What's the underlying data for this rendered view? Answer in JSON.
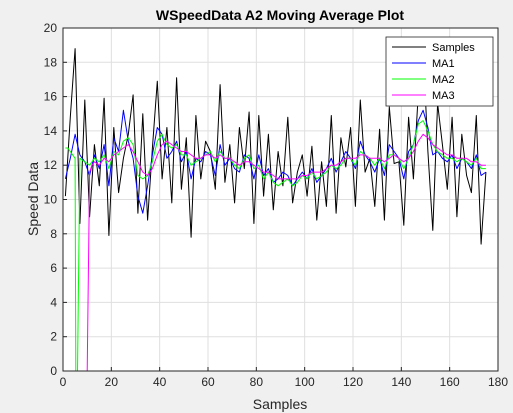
{
  "chart_data": {
    "type": "line",
    "title": "WSpeedData A2 Moving Average Plot",
    "xlabel": "Samples",
    "ylabel": "Speed Data",
    "xlim": [
      0,
      180
    ],
    "ylim": [
      0,
      20
    ],
    "xticks": [
      "0",
      "20",
      "40",
      "60",
      "80",
      "100",
      "120",
      "140",
      "160",
      "180"
    ],
    "yticks": [
      "0",
      "2",
      "4",
      "6",
      "8",
      "10",
      "12",
      "14",
      "16",
      "18",
      "20"
    ],
    "grid": true,
    "legend_position": "top-right",
    "series": [
      {
        "name": "Samples",
        "color": "#000000",
        "x": [
          1,
          3,
          5,
          7,
          9,
          11,
          13,
          15,
          17,
          19,
          21,
          23,
          25,
          27,
          29,
          31,
          33,
          35,
          37,
          39,
          41,
          43,
          45,
          47,
          49,
          51,
          53,
          55,
          57,
          59,
          61,
          63,
          65,
          67,
          69,
          71,
          73,
          75,
          77,
          79,
          81,
          83,
          85,
          87,
          89,
          91,
          93,
          95,
          97,
          99,
          101,
          103,
          105,
          107,
          109,
          111,
          113,
          115,
          117,
          119,
          121,
          123,
          125,
          127,
          129,
          131,
          133,
          135,
          137,
          139,
          141,
          143,
          145,
          147,
          149,
          151,
          153,
          155,
          157,
          159,
          161,
          163,
          165,
          167,
          169,
          171,
          173,
          175
        ],
        "values": [
          10.2,
          14.8,
          18.8,
          8.6,
          15.8,
          9.0,
          13.2,
          10.8,
          15.9,
          7.9,
          14.2,
          10.4,
          12.4,
          13.8,
          16.1,
          9.2,
          15.0,
          8.8,
          13.0,
          16.9,
          11.2,
          14.2,
          9.8,
          17.1,
          10.6,
          13.6,
          7.8,
          14.9,
          11.2,
          13.4,
          12.8,
          10.6,
          16.7,
          11.0,
          13.2,
          9.8,
          14.2,
          11.8,
          15.1,
          8.6,
          14.9,
          10.2,
          13.8,
          9.4,
          12.8,
          10.8,
          14.8,
          9.8,
          11.6,
          12.6,
          10.2,
          13.1,
          8.8,
          12.2,
          9.6,
          14.9,
          9.2,
          13.6,
          11.9,
          14.2,
          9.6,
          15.8,
          11.6,
          12.4,
          9.6,
          14.1,
          8.8,
          15.4,
          12.1,
          12.2,
          8.5,
          14.8,
          11.2,
          16.2,
          18.9,
          12.8,
          8.2,
          15.6,
          13.2,
          10.6,
          14.8,
          9.0,
          13.8,
          11.4,
          10.4,
          14.9,
          7.4,
          11.6
        ]
      },
      {
        "name": "MA1",
        "color": "#0000ff",
        "x": [
          1,
          3,
          5,
          7,
          9,
          11,
          13,
          15,
          17,
          19,
          21,
          23,
          25,
          27,
          29,
          31,
          33,
          35,
          37,
          39,
          41,
          43,
          45,
          47,
          49,
          51,
          53,
          55,
          57,
          59,
          61,
          63,
          65,
          67,
          69,
          71,
          73,
          75,
          77,
          79,
          81,
          83,
          85,
          87,
          89,
          91,
          93,
          95,
          97,
          99,
          101,
          103,
          105,
          107,
          109,
          111,
          113,
          115,
          117,
          119,
          121,
          123,
          125,
          127,
          129,
          131,
          133,
          135,
          137,
          139,
          141,
          143,
          145,
          147,
          149,
          151,
          153,
          155,
          157,
          159,
          161,
          163,
          165,
          167,
          169,
          171,
          173,
          175
        ],
        "values": [
          11.2,
          12.4,
          13.8,
          12.6,
          12.2,
          11.4,
          12.6,
          11.8,
          13.2,
          10.8,
          13.6,
          12.8,
          15.2,
          13.4,
          12.4,
          10.2,
          9.2,
          10.8,
          12.6,
          14.2,
          13.8,
          12.4,
          12.8,
          13.4,
          12.2,
          12.8,
          11.2,
          12.4,
          12.2,
          12.8,
          12.6,
          11.4,
          13.2,
          12.0,
          12.4,
          11.8,
          11.6,
          12.6,
          12.4,
          11.2,
          12.6,
          11.4,
          11.8,
          11.0,
          11.2,
          11.6,
          11.4,
          10.8,
          11.2,
          11.6,
          11.2,
          11.8,
          11.0,
          11.4,
          11.8,
          12.4,
          11.6,
          12.2,
          12.8,
          12.4,
          11.8,
          13.4,
          12.6,
          12.2,
          11.6,
          12.4,
          11.4,
          13.2,
          12.8,
          12.4,
          11.2,
          12.8,
          13.2,
          14.6,
          15.2,
          14.2,
          12.6,
          12.8,
          12.4,
          12.2,
          12.6,
          11.8,
          12.4,
          12.2,
          11.8,
          12.6,
          11.4,
          11.6
        ]
      },
      {
        "name": "MA2",
        "color": "#00ff00",
        "x": [
          1,
          2,
          3,
          4,
          5,
          5.3,
          6,
          7,
          9,
          11,
          13,
          15,
          17,
          19,
          21,
          23,
          25,
          27,
          29,
          31,
          33,
          35,
          37,
          39,
          41,
          43,
          45,
          47,
          49,
          51,
          53,
          55,
          57,
          59,
          61,
          63,
          65,
          67,
          69,
          71,
          73,
          75,
          77,
          79,
          81,
          83,
          85,
          87,
          89,
          91,
          93,
          95,
          97,
          99,
          101,
          103,
          105,
          107,
          109,
          111,
          113,
          115,
          117,
          119,
          121,
          123,
          125,
          127,
          129,
          131,
          133,
          135,
          137,
          139,
          141,
          143,
          145,
          147,
          149,
          151,
          153,
          155,
          157,
          159,
          161,
          163,
          165,
          167,
          169,
          171,
          173,
          175
        ],
        "values": [
          13.0,
          13.0,
          12.8,
          12.6,
          12.4,
          0,
          0,
          12.4,
          12.2,
          12.0,
          12.4,
          12.2,
          12.6,
          11.8,
          12.8,
          12.6,
          13.4,
          13.6,
          13.2,
          11.4,
          11.2,
          11.4,
          12.2,
          13.4,
          13.8,
          13.2,
          13.0,
          13.2,
          12.6,
          12.6,
          12.0,
          12.2,
          12.4,
          12.6,
          12.8,
          12.2,
          12.8,
          12.4,
          12.4,
          12.0,
          11.8,
          12.4,
          12.6,
          11.8,
          12.0,
          11.2,
          11.6,
          11.0,
          10.8,
          11.0,
          11.2,
          10.8,
          11.0,
          11.4,
          11.2,
          11.6,
          11.2,
          11.4,
          11.6,
          12.0,
          11.8,
          12.0,
          12.4,
          12.4,
          12.0,
          12.8,
          12.6,
          12.4,
          12.0,
          12.4,
          11.8,
          12.6,
          12.6,
          12.4,
          11.8,
          12.4,
          13.2,
          14.4,
          14.6,
          14.0,
          13.2,
          12.8,
          12.6,
          12.4,
          12.4,
          12.2,
          12.4,
          12.2,
          12.0,
          12.4,
          11.8,
          11.8
        ]
      },
      {
        "name": "MA3",
        "color": "#ff00ff",
        "x": [
          1,
          3,
          5,
          7,
          9,
          10,
          11,
          12,
          13,
          15,
          17,
          19,
          21,
          23,
          25,
          27,
          29,
          31,
          33,
          35,
          37,
          39,
          41,
          43,
          45,
          47,
          49,
          51,
          53,
          55,
          57,
          59,
          61,
          63,
          65,
          67,
          69,
          71,
          73,
          75,
          77,
          79,
          81,
          83,
          85,
          87,
          89,
          91,
          93,
          95,
          97,
          99,
          101,
          103,
          105,
          107,
          109,
          111,
          113,
          115,
          117,
          119,
          121,
          123,
          125,
          127,
          129,
          131,
          133,
          135,
          137,
          139,
          141,
          143,
          145,
          147,
          149,
          151,
          153,
          155,
          157,
          159,
          161,
          163,
          165,
          167,
          169,
          171,
          173,
          175
        ],
        "values": [
          0,
          0,
          0,
          0,
          0,
          0,
          11.6,
          12.0,
          12.2,
          12.0,
          12.4,
          12.2,
          12.6,
          12.8,
          13.0,
          13.2,
          12.8,
          12.2,
          11.6,
          11.4,
          11.8,
          12.6,
          13.2,
          13.4,
          13.2,
          13.0,
          12.8,
          12.8,
          12.6,
          12.4,
          12.4,
          12.6,
          12.6,
          12.4,
          12.6,
          12.4,
          12.4,
          12.2,
          12.0,
          12.2,
          12.2,
          12.0,
          11.8,
          11.6,
          11.6,
          11.4,
          11.2,
          11.2,
          11.2,
          11.2,
          11.2,
          11.4,
          11.4,
          11.6,
          11.6,
          11.6,
          11.8,
          12.0,
          12.0,
          12.2,
          12.4,
          12.4,
          12.4,
          12.6,
          12.6,
          12.4,
          12.4,
          12.4,
          12.2,
          12.4,
          12.6,
          12.4,
          12.2,
          12.4,
          12.8,
          13.4,
          13.8,
          13.6,
          13.2,
          13.0,
          12.8,
          12.6,
          12.6,
          12.4,
          12.4,
          12.4,
          12.2,
          12.2,
          12.0,
          12.0
        ]
      }
    ]
  }
}
